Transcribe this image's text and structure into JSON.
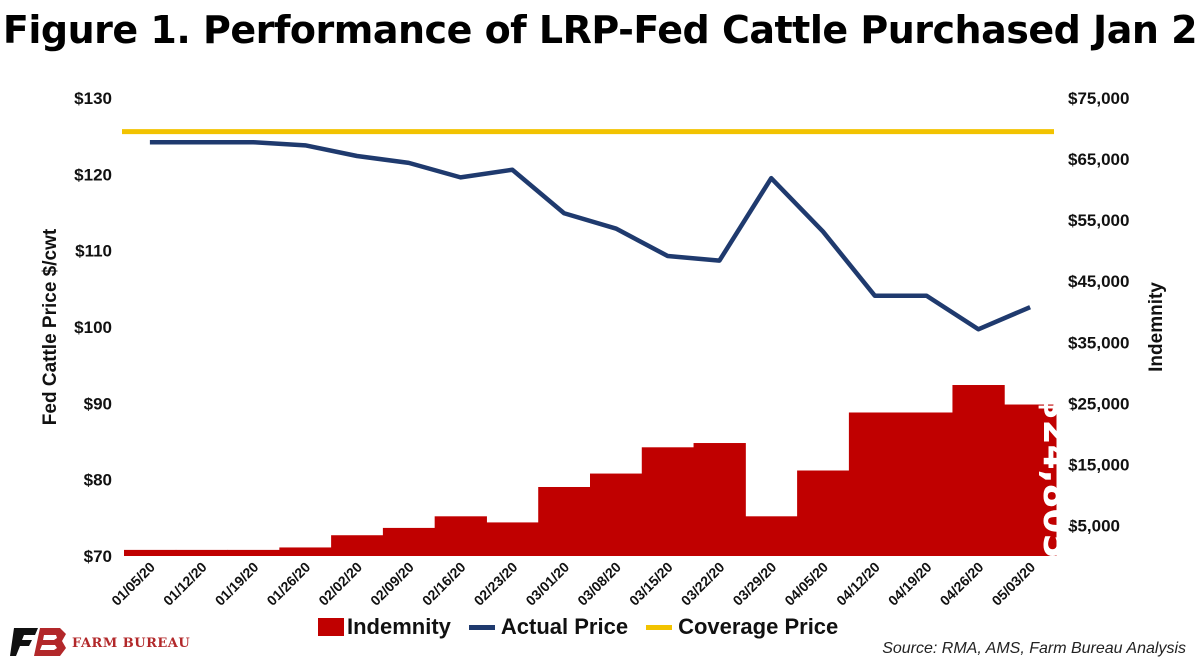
{
  "title": "Figure 1. Performance of LRP-Fed Cattle Purchased Jan 2",
  "source": "Source: RMA, AMS, Farm Bureau Analysis",
  "logo": {
    "text": "FARM BUREAU",
    "icon": "farm-bureau-fb-logo-icon"
  },
  "colors": {
    "indemnity": "#c00000",
    "actual": "#1f3a6e",
    "coverage": "#f2c300"
  },
  "chart_data": {
    "type": "bar",
    "categories": [
      "01/05/20",
      "01/12/20",
      "01/19/20",
      "01/26/20",
      "02/02/20",
      "02/09/20",
      "02/16/20",
      "02/23/20",
      "03/01/20",
      "03/08/20",
      "03/15/20",
      "03/22/20",
      "03/29/20",
      "04/05/20",
      "04/12/20",
      "04/19/20",
      "04/26/20",
      "05/03/20"
    ],
    "ylabel": "Fed Cattle Price $/cwt",
    "y2label": "Indemnity",
    "ylim": [
      70,
      130
    ],
    "y2lim": [
      0,
      75000
    ],
    "yticks": [
      "$70",
      "$80",
      "$90",
      "$100",
      "$110",
      "$120",
      "$130"
    ],
    "y2ticks": [
      "$5,000",
      "$15,000",
      "$25,000",
      "$35,000",
      "$45,000",
      "$55,000",
      "$65,000",
      "$75,000"
    ],
    "series": [
      {
        "name": "Indemnity",
        "type": "bar",
        "axis": "right",
        "values": [
          1000,
          1000,
          1000,
          1400,
          3400,
          4600,
          6500,
          5500,
          11300,
          13500,
          17800,
          18500,
          6500,
          14000,
          23500,
          23500,
          28000,
          24805
        ]
      },
      {
        "name": "Actual Price",
        "type": "line",
        "axis": "left",
        "values": [
          124.2,
          124.2,
          124.2,
          123.8,
          122.4,
          121.5,
          119.6,
          120.6,
          114.9,
          112.9,
          109.3,
          108.7,
          119.5,
          112.5,
          104.1,
          104.1,
          99.7,
          102.6
        ]
      },
      {
        "name": "Coverage Price",
        "type": "line",
        "axis": "left",
        "values": [
          125.6,
          125.6,
          125.6,
          125.6,
          125.6,
          125.6,
          125.6,
          125.6,
          125.6,
          125.6,
          125.6,
          125.6,
          125.6,
          125.6,
          125.6,
          125.6,
          125.6,
          125.6
        ]
      }
    ],
    "annotation": "$24,805",
    "legend_placement": "bottom-center",
    "grid": false
  }
}
